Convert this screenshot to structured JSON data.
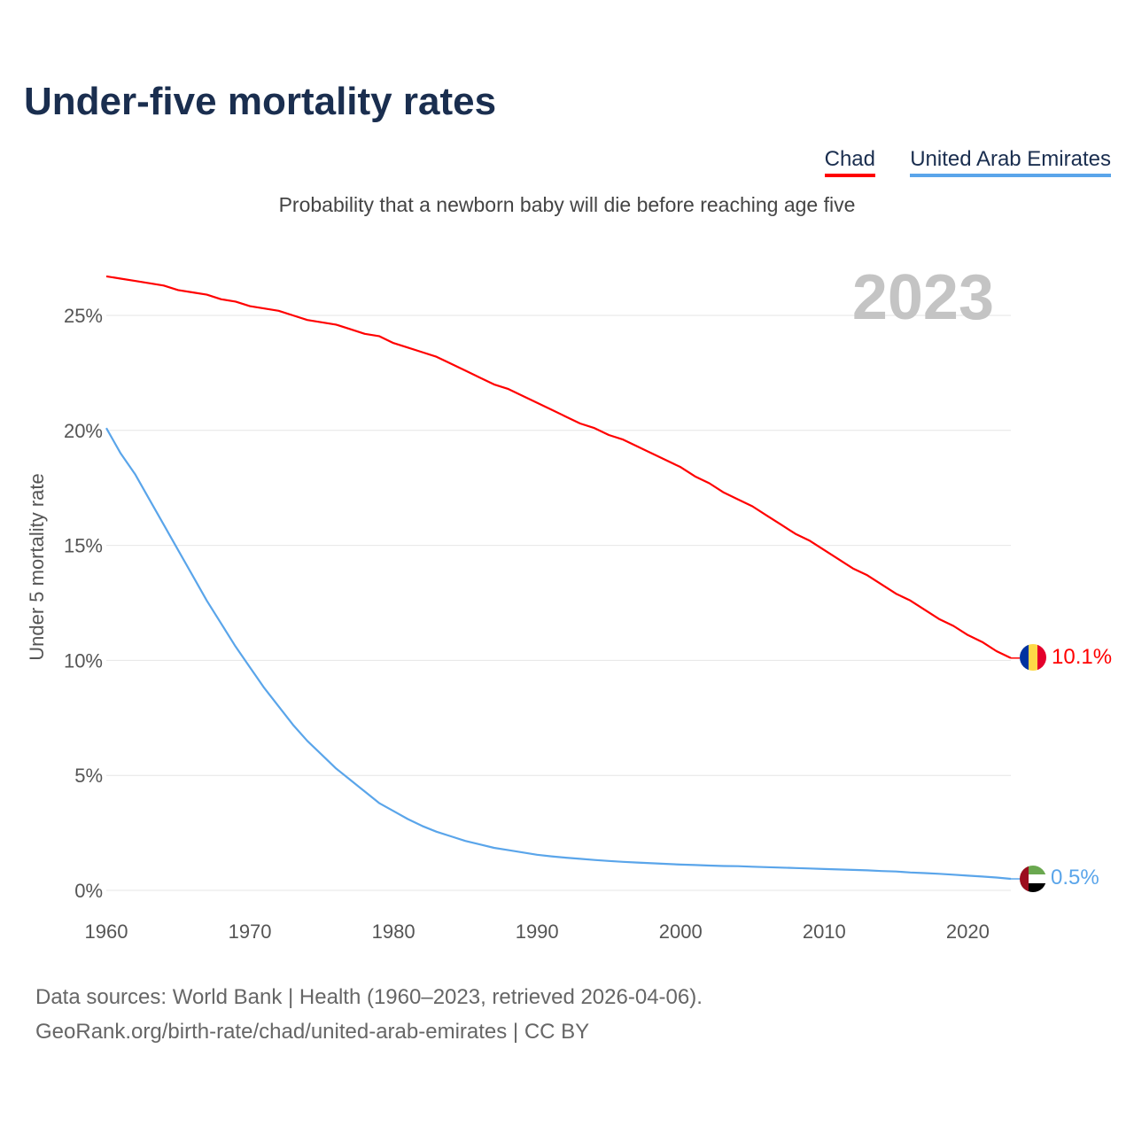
{
  "title": "Under-five mortality rates",
  "subtitle": "Probability that a newborn baby will die before reaching age five",
  "footer": {
    "line1": "Data sources: World Bank | Health (1960–2023, retrieved 2026-04-06).",
    "line2": "GeoRank.org/birth-rate/chad/united-arab-emirates | CC BY"
  },
  "chart_data": {
    "type": "line",
    "title": "Under-five mortality rates",
    "ylabel": "Under 5 mortality rate",
    "xlabel": "",
    "year_label": "2023",
    "xlim": [
      1960,
      2023
    ],
    "ylim": [
      0,
      27
    ],
    "xticks": [
      1960,
      1970,
      1980,
      1990,
      2000,
      2010,
      2020
    ],
    "yticks": [
      0,
      5,
      10,
      15,
      20,
      25
    ],
    "ytick_labels": [
      "0%",
      "5%",
      "10%",
      "15%",
      "20%",
      "25%"
    ],
    "grid": true,
    "legend_position": "top-right",
    "x_start": 1960,
    "series": [
      {
        "name": "Chad",
        "color": "#ff0000",
        "end_label": "10.1%",
        "flag": "chad-flag",
        "values": [
          26.7,
          26.6,
          26.5,
          26.4,
          26.3,
          26.1,
          26.0,
          25.9,
          25.7,
          25.6,
          25.4,
          25.3,
          25.2,
          25.0,
          24.8,
          24.7,
          24.6,
          24.4,
          24.2,
          24.1,
          23.8,
          23.6,
          23.4,
          23.2,
          22.9,
          22.6,
          22.3,
          22.0,
          21.8,
          21.5,
          21.2,
          20.9,
          20.6,
          20.3,
          20.1,
          19.8,
          19.6,
          19.3,
          19.0,
          18.7,
          18.4,
          18.0,
          17.7,
          17.3,
          17.0,
          16.7,
          16.3,
          15.9,
          15.5,
          15.2,
          14.8,
          14.4,
          14.0,
          13.7,
          13.3,
          12.9,
          12.6,
          12.2,
          11.8,
          11.5,
          11.1,
          10.8,
          10.4,
          10.1
        ]
      },
      {
        "name": "United Arab Emirates",
        "color": "#5aa5ea",
        "end_label": "0.5%",
        "flag": "uae-flag",
        "values": [
          20.1,
          19.0,
          18.1,
          17.0,
          15.9,
          14.8,
          13.7,
          12.6,
          11.6,
          10.6,
          9.7,
          8.8,
          8.0,
          7.2,
          6.5,
          5.9,
          5.3,
          4.8,
          4.3,
          3.8,
          3.45,
          3.1,
          2.8,
          2.55,
          2.35,
          2.15,
          2.0,
          1.85,
          1.75,
          1.65,
          1.55,
          1.48,
          1.42,
          1.37,
          1.32,
          1.28,
          1.24,
          1.21,
          1.18,
          1.15,
          1.12,
          1.1,
          1.08,
          1.06,
          1.05,
          1.03,
          1.01,
          0.99,
          0.97,
          0.95,
          0.93,
          0.91,
          0.89,
          0.87,
          0.84,
          0.82,
          0.78,
          0.75,
          0.72,
          0.68,
          0.64,
          0.6,
          0.56,
          0.5
        ]
      }
    ]
  }
}
